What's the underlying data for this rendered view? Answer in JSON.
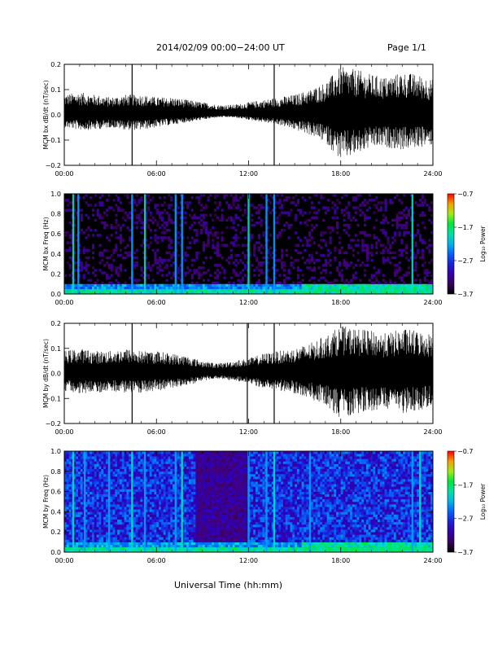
{
  "header": {
    "title": "2014/02/09  00:00−24:00 UT",
    "page": "Page 1/1"
  },
  "x_axis_title": "Universal Time (hh:mm)",
  "colors": {
    "trace": "#000000",
    "spectrogram_background": "#000000"
  },
  "chart_data": [
    {
      "type": "line",
      "ylabel": "MCM bx dB/dt (nT/sec)",
      "x": {
        "range": [
          "00:00",
          "24:00"
        ],
        "ticks": [
          "00:00",
          "06:00",
          "12:00",
          "18:00",
          "24:00"
        ]
      },
      "ylim": [
        -0.2,
        0.2
      ],
      "yticks": [
        "−0.2",
        "−0.1",
        "0.0",
        "0.1",
        "0.2"
      ],
      "series": [
        {
          "x": [
            "00:00",
            "01:00",
            "02:00",
            "03:00",
            "04:00",
            "05:00",
            "06:00",
            "07:00",
            "08:00",
            "09:00",
            "10:00",
            "11:00",
            "12:00",
            "13:00",
            "14:00",
            "15:00",
            "16:00",
            "17:00",
            "18:00",
            "19:00",
            "20:00",
            "21:00",
            "22:00",
            "23:00",
            "24:00"
          ],
          "y_high": [
            0.07,
            0.08,
            0.07,
            0.06,
            0.07,
            0.07,
            0.06,
            0.06,
            0.05,
            0.04,
            0.03,
            0.03,
            0.04,
            0.05,
            0.06,
            0.07,
            0.09,
            0.12,
            0.18,
            0.17,
            0.15,
            0.14,
            0.16,
            0.15,
            0.13
          ],
          "y_low": [
            -0.05,
            -0.06,
            -0.06,
            -0.05,
            -0.06,
            -0.06,
            -0.05,
            -0.04,
            -0.03,
            -0.02,
            -0.01,
            -0.01,
            -0.02,
            -0.03,
            -0.04,
            -0.06,
            -0.08,
            -0.11,
            -0.18,
            -0.16,
            -0.13,
            -0.13,
            -0.14,
            -0.13,
            -0.12
          ]
        }
      ],
      "spikes": [
        "04:25",
        "13:40"
      ]
    },
    {
      "type": "heatmap",
      "ylabel": "MCM bx Freq (Hz)",
      "x": {
        "range": [
          "00:00",
          "24:00"
        ],
        "ticks": [
          "00:00",
          "06:00",
          "12:00",
          "18:00",
          "24:00"
        ]
      },
      "ylim": [
        0.0,
        1.0
      ],
      "yticks": [
        "0.0",
        "0.2",
        "0.4",
        "0.6",
        "0.8",
        "1.0"
      ],
      "colorbar": {
        "label": "Log₁₀ Power",
        "range": [
          -3.7,
          -0.7
        ],
        "ticks": [
          "−0.7",
          "−1.7",
          "−2.7",
          "−3.7"
        ]
      },
      "vertical_bright_lines": [
        "00:35",
        "00:55",
        "04:25",
        "05:15",
        "07:15",
        "07:40",
        "12:00",
        "13:10",
        "13:40",
        "22:40"
      ],
      "low_freq_band": {
        "freq_max": 0.1,
        "enhanced_after": "15:30"
      }
    },
    {
      "type": "line",
      "ylabel": "MCM by dB/dt (nT/sec)",
      "x": {
        "range": [
          "00:00",
          "24:00"
        ],
        "ticks": [
          "00:00",
          "06:00",
          "12:00",
          "18:00",
          "24:00"
        ]
      },
      "ylim": [
        -0.2,
        0.2
      ],
      "yticks": [
        "−0.2",
        "−0.1",
        "0.0",
        "0.1",
        "0.2"
      ],
      "series": [
        {
          "x": [
            "00:00",
            "01:00",
            "02:00",
            "03:00",
            "04:00",
            "05:00",
            "06:00",
            "07:00",
            "08:00",
            "09:00",
            "10:00",
            "11:00",
            "12:00",
            "13:00",
            "14:00",
            "15:00",
            "16:00",
            "17:00",
            "18:00",
            "19:00",
            "20:00",
            "21:00",
            "22:00",
            "23:00",
            "24:00"
          ],
          "y_high": [
            0.08,
            0.09,
            0.08,
            0.08,
            0.09,
            0.08,
            0.08,
            0.07,
            0.06,
            0.04,
            0.03,
            0.04,
            0.05,
            0.07,
            0.08,
            0.09,
            0.11,
            0.14,
            0.18,
            0.17,
            0.16,
            0.15,
            0.17,
            0.16,
            0.15
          ],
          "y_low": [
            -0.07,
            -0.08,
            -0.08,
            -0.07,
            -0.08,
            -0.08,
            -0.07,
            -0.06,
            -0.05,
            -0.03,
            -0.02,
            -0.03,
            -0.04,
            -0.06,
            -0.07,
            -0.08,
            -0.1,
            -0.13,
            -0.18,
            -0.16,
            -0.15,
            -0.14,
            -0.16,
            -0.15,
            -0.13
          ]
        }
      ],
      "spikes": [
        "04:25",
        "11:55",
        "13:40"
      ]
    },
    {
      "type": "heatmap",
      "ylabel": "MCM by Freq (Hz)",
      "x": {
        "range": [
          "00:00",
          "24:00"
        ],
        "ticks": [
          "00:00",
          "06:00",
          "12:00",
          "18:00",
          "24:00"
        ]
      },
      "ylim": [
        0.0,
        1.0
      ],
      "yticks": [
        "0.0",
        "0.2",
        "0.4",
        "0.6",
        "0.8",
        "1.0"
      ],
      "colorbar": {
        "label": "Log₁₀ Power",
        "range": [
          -3.7,
          -0.7
        ],
        "ticks": [
          "−0.7",
          "−1.7",
          "−2.7",
          "−3.7"
        ]
      },
      "vertical_bright_lines": [
        "00:35",
        "01:20",
        "02:55",
        "04:25",
        "05:15",
        "07:15",
        "07:40",
        "12:00",
        "13:10",
        "13:40",
        "16:00",
        "22:40",
        "23:10"
      ],
      "low_freq_band": {
        "freq_max": 0.1,
        "enhanced_after": "15:30"
      }
    }
  ]
}
